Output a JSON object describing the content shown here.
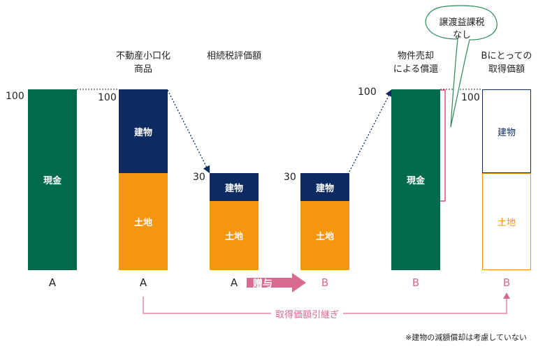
{
  "colors": {
    "cash": "#036b4d",
    "building": "#0d2a63",
    "land": "#f6960f",
    "accent": "#d96a8e",
    "bracket": "#d9264d",
    "bubble_border": "#2a8a56"
  },
  "headers": {
    "product": "不動産小口化\n商品",
    "tax_value": "相続税評価額",
    "redemption": "物件売却\nによる償還",
    "acquisition": "Bにとっての\n取得価額"
  },
  "values": {
    "v100_cash": "100",
    "v100_product": "100",
    "v30_a": "30",
    "v30_b": "30",
    "v100_redeem": "100",
    "v100_acq": "100"
  },
  "bars": {
    "cash_a": "現金",
    "product_building": "建物",
    "product_land": "土地",
    "tax_a_building": "建物",
    "tax_a_land": "土地",
    "tax_b_building": "建物",
    "tax_b_land": "土地",
    "redeem_cash": "現金",
    "acq_building": "建物",
    "acq_land": "土地"
  },
  "labels": {
    "l1": "A",
    "l2": "A",
    "l3": "A",
    "l4": "B",
    "l5": "B",
    "l6": "B"
  },
  "gift": {
    "text": "贈与",
    "icon": "right-arrow-icon"
  },
  "inheritance": {
    "text": "取得価額引継ぎ"
  },
  "bubble": {
    "text": "譲渡益課税\nなし"
  },
  "footnote": "※建物の減額償却は考慮していない"
}
